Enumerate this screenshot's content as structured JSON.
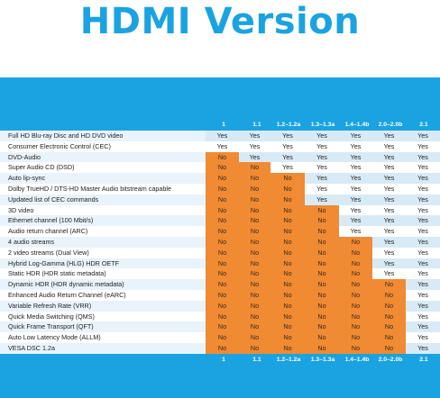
{
  "title": "HDMI Version",
  "versions": [
    "1",
    "1.1",
    "1.2–1.2a",
    "1.3–1.3a",
    "1.4–1.4b",
    "2.0–2.0b",
    "2.1"
  ],
  "yes_text": "Yes",
  "no_text": "No",
  "colors": {
    "accent": "#1aa3e0",
    "no_cell": "#f08a33"
  },
  "features": [
    {
      "name": "Full HD Blu-ray Disc and HD DVD video",
      "first_yes": 0
    },
    {
      "name": "Consumer Electronic Control (CEC)",
      "first_yes": 0
    },
    {
      "name": "DVD-Audio",
      "first_yes": 1
    },
    {
      "name": "Super Audio CD (DSD)",
      "first_yes": 2
    },
    {
      "name": "Auto lip-sync",
      "first_yes": 3
    },
    {
      "name": "Dolby TrueHD / DTS-HD Master Audio bitstream capable",
      "first_yes": 3
    },
    {
      "name": "Updated list of CEC commands",
      "first_yes": 3
    },
    {
      "name": "3D video",
      "first_yes": 4
    },
    {
      "name": "Ethernet channel (100 Mbit/s)",
      "first_yes": 4
    },
    {
      "name": "Audio return channel (ARC)",
      "first_yes": 4
    },
    {
      "name": "4 audio streams",
      "first_yes": 5
    },
    {
      "name": "2 video streams (Dual View)",
      "first_yes": 5
    },
    {
      "name": "Hybrid Log-Gamma (HLG) HDR OETF",
      "first_yes": 5
    },
    {
      "name": "Static HDR (HDR static metadata)",
      "first_yes": 5
    },
    {
      "name": "Dynamic HDR (HDR dynamic metadata)",
      "first_yes": 6
    },
    {
      "name": "Enhanced Audio Return Channel (eARC)",
      "first_yes": 6
    },
    {
      "name": "Variable Refresh Rate (VRR)",
      "first_yes": 6
    },
    {
      "name": "Quick Media Switching (QMS)",
      "first_yes": 6
    },
    {
      "name": "Quick Frame Transport (QFT)",
      "first_yes": 6
    },
    {
      "name": "Auto Low Latency Mode (ALLM)",
      "first_yes": 6
    },
    {
      "name": "VESA DSC 1.2a",
      "first_yes": 6
    }
  ]
}
